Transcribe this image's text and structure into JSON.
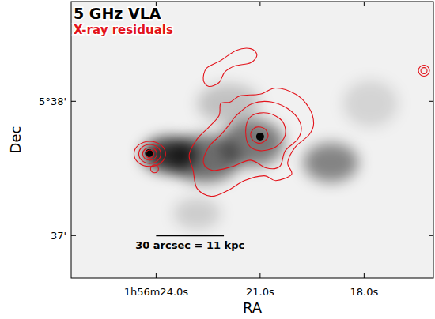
{
  "chart_data": {
    "type": "image",
    "title": "5 GHz VLA",
    "subtitle": "X-ray residuals",
    "xlabel": "RA",
    "ylabel": "Dec",
    "xlim": [
      26.45,
      16.0
    ],
    "ylim": [
      36.684,
      38.743
    ],
    "xticks": [
      {
        "value": 24,
        "label": "1h56m24.0s"
      },
      {
        "value": 21,
        "label": "21.0s"
      },
      {
        "value": 18,
        "label": "18.0s"
      }
    ],
    "yticks": [
      {
        "value": 38,
        "label": "5°38'"
      },
      {
        "value": 37,
        "label": "37'"
      }
    ],
    "color": "#e3131b",
    "radio_emission": [
      {
        "x": 23.614,
        "y": 37.602,
        "rx": 0.795,
        "ry": 0.129,
        "brightness": 0.8
      },
      {
        "x": 22.591,
        "y": 37.573,
        "rx": 1.023,
        "ry": 0.175,
        "brightness": 0.55
      },
      {
        "x": 21.227,
        "y": 37.69,
        "rx": 0.909,
        "ry": 0.175,
        "brightness": 0.5
      },
      {
        "x": 18.955,
        "y": 37.544,
        "rx": 0.795,
        "ry": 0.146,
        "brightness": 0.45
      },
      {
        "x": 21.909,
        "y": 37.983,
        "rx": 0.909,
        "ry": 0.146,
        "brightness": 0.2
      },
      {
        "x": 22.818,
        "y": 37.164,
        "rx": 0.682,
        "ry": 0.117,
        "brightness": 0.15
      },
      {
        "x": 17.818,
        "y": 37.983,
        "rx": 0.795,
        "ry": 0.175,
        "brightness": 0.12
      }
    ],
    "point_sources": [
      {
        "x": 24.205,
        "y": 37.614
      },
      {
        "x": 21.0,
        "y": 37.737
      }
    ],
    "contours": [
      {
        "x": [
          22.636,
          22.545,
          22.136,
          21.682,
          21.273,
          21.091,
          21.273,
          21.727,
          22.023,
          22.182,
          22.477
        ],
        "y": [
          38.158,
          38.246,
          38.304,
          38.38,
          38.392,
          38.345,
          38.287,
          38.263,
          38.216,
          38.14,
          38.111
        ]
      },
      {
        "x": [
          22.136,
          21.864,
          21.568,
          21.0,
          20.545,
          19.977,
          19.591,
          19.455,
          19.591,
          19.977,
          20.205,
          20.091,
          20.545,
          20.886,
          21.455,
          21.909,
          22.409,
          22.818,
          22.932,
          23.045,
          22.818,
          22.477,
          22.182
        ],
        "y": [
          37.983,
          37.994,
          38.041,
          38.053,
          38.099,
          38.053,
          37.953,
          37.836,
          37.749,
          37.661,
          37.544,
          37.456,
          37.409,
          37.445,
          37.409,
          37.339,
          37.292,
          37.351,
          37.485,
          37.602,
          37.719,
          37.807,
          37.895
        ]
      },
      {
        "x": [
          21.909,
          21.682,
          21.227,
          20.659,
          20.091,
          19.818,
          19.909,
          20.273,
          20.432,
          20.818,
          21.273,
          21.795,
          22.364,
          22.636,
          22.477,
          22.136
        ],
        "y": [
          37.819,
          37.895,
          37.983,
          37.994,
          37.924,
          37.819,
          37.719,
          37.632,
          37.515,
          37.503,
          37.561,
          37.515,
          37.485,
          37.544,
          37.661,
          37.749
        ]
      },
      {
        "x": [
          21.409,
          21.227,
          20.773,
          20.364,
          20.273,
          20.545,
          21.0,
          21.341
        ],
        "y": [
          37.807,
          37.895,
          37.912,
          37.854,
          37.749,
          37.661,
          37.632,
          37.678
        ]
      },
      {
        "x": [
          21.273,
          21.114,
          20.864,
          20.773,
          20.955,
          21.182
        ],
        "y": [
          37.76,
          37.807,
          37.795,
          37.737,
          37.69,
          37.702
        ]
      }
    ],
    "contour_ellipses": [
      {
        "x": 24.182,
        "y": 37.608,
        "rx": 0.455,
        "ry": 0.094
      },
      {
        "x": 24.182,
        "y": 37.608,
        "rx": 0.318,
        "ry": 0.07
      },
      {
        "x": 24.182,
        "y": 37.608,
        "rx": 0.205,
        "ry": 0.047
      },
      {
        "x": 24.182,
        "y": 37.608,
        "rx": 0.114,
        "ry": 0.029
      },
      {
        "x": 24.045,
        "y": 37.497,
        "rx": 0.114,
        "ry": 0.029
      },
      {
        "x": 16.273,
        "y": 38.228,
        "rx": 0.159,
        "ry": 0.041
      },
      {
        "x": 16.273,
        "y": 38.228,
        "rx": 0.091,
        "ry": 0.023
      }
    ],
    "annotations": [
      {
        "text": "30 arcsec = 11 kpc",
        "x": [
          24.0,
          22.045
        ],
        "y": 37.0
      }
    ]
  }
}
